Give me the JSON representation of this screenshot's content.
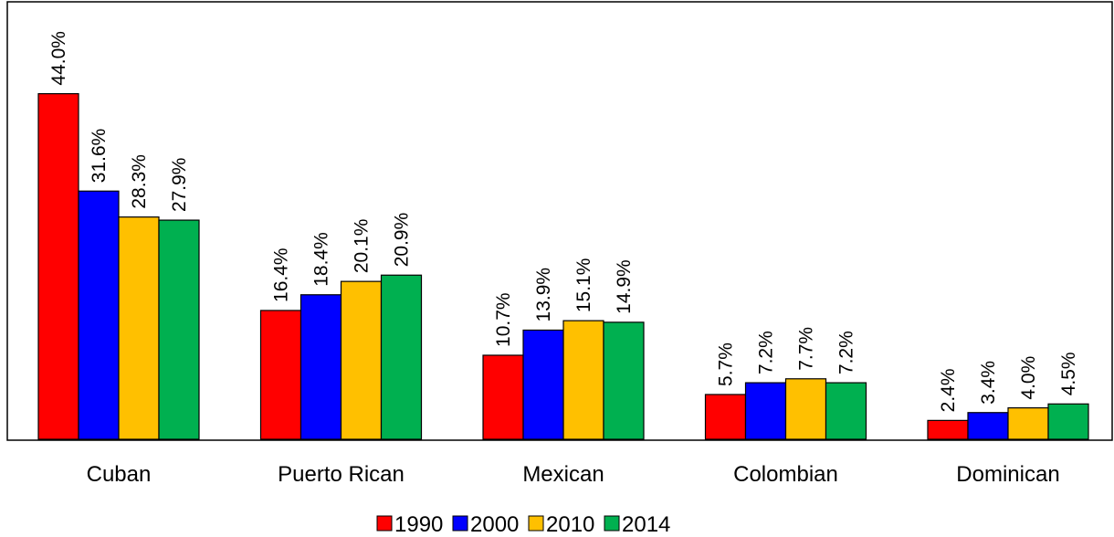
{
  "chart_data": {
    "type": "bar",
    "title": "",
    "xlabel": "",
    "ylabel": "",
    "ylim": [
      0,
      50
    ],
    "grid": false,
    "legend_position": "bottom-center",
    "value_format": "%.1f%",
    "categories": [
      "Cuban",
      "Puerto Rican",
      "Mexican",
      "Colombian",
      "Dominican"
    ],
    "series": [
      {
        "name": "1990",
        "color": "#ff0000",
        "values": [
          44.0,
          16.4,
          10.7,
          5.7,
          2.4
        ]
      },
      {
        "name": "2000",
        "color": "#0000ff",
        "values": [
          31.6,
          18.4,
          13.9,
          7.2,
          3.4
        ]
      },
      {
        "name": "2010",
        "color": "#ffc000",
        "values": [
          28.3,
          20.1,
          15.1,
          7.7,
          4.0
        ]
      },
      {
        "name": "2014",
        "color": "#00b050",
        "values": [
          27.9,
          20.9,
          14.9,
          7.2,
          4.5
        ]
      }
    ]
  }
}
